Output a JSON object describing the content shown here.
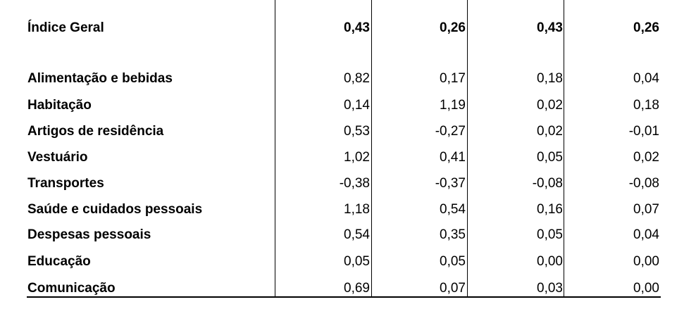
{
  "table": {
    "rows": [
      [
        "Índice Geral",
        "0,43",
        "0,26",
        "0,43",
        "0,26"
      ],
      [
        "Alimentação e bebidas",
        "0,82",
        "0,17",
        "0,18",
        "0,04"
      ],
      [
        "Habitação",
        "0,14",
        "1,19",
        "0,02",
        "0,18"
      ],
      [
        "Artigos de residência",
        "0,53",
        "-0,27",
        "0,02",
        "-0,01"
      ],
      [
        "Vestuário",
        "1,02",
        "0,41",
        "0,05",
        "0,02"
      ],
      [
        "Transportes",
        "-0,38",
        "-0,37",
        "-0,08",
        "-0,08"
      ],
      [
        "Saúde e cuidados pessoais",
        "1,18",
        "0,54",
        "0,16",
        "0,07"
      ],
      [
        "Despesas pessoais",
        "0,54",
        "0,35",
        "0,05",
        "0,04"
      ],
      [
        "Educação",
        "0,05",
        "0,05",
        "0,00",
        "0,00"
      ],
      [
        "Comunicação",
        "0,69",
        "0,07",
        "0,03",
        "0,00"
      ]
    ]
  }
}
